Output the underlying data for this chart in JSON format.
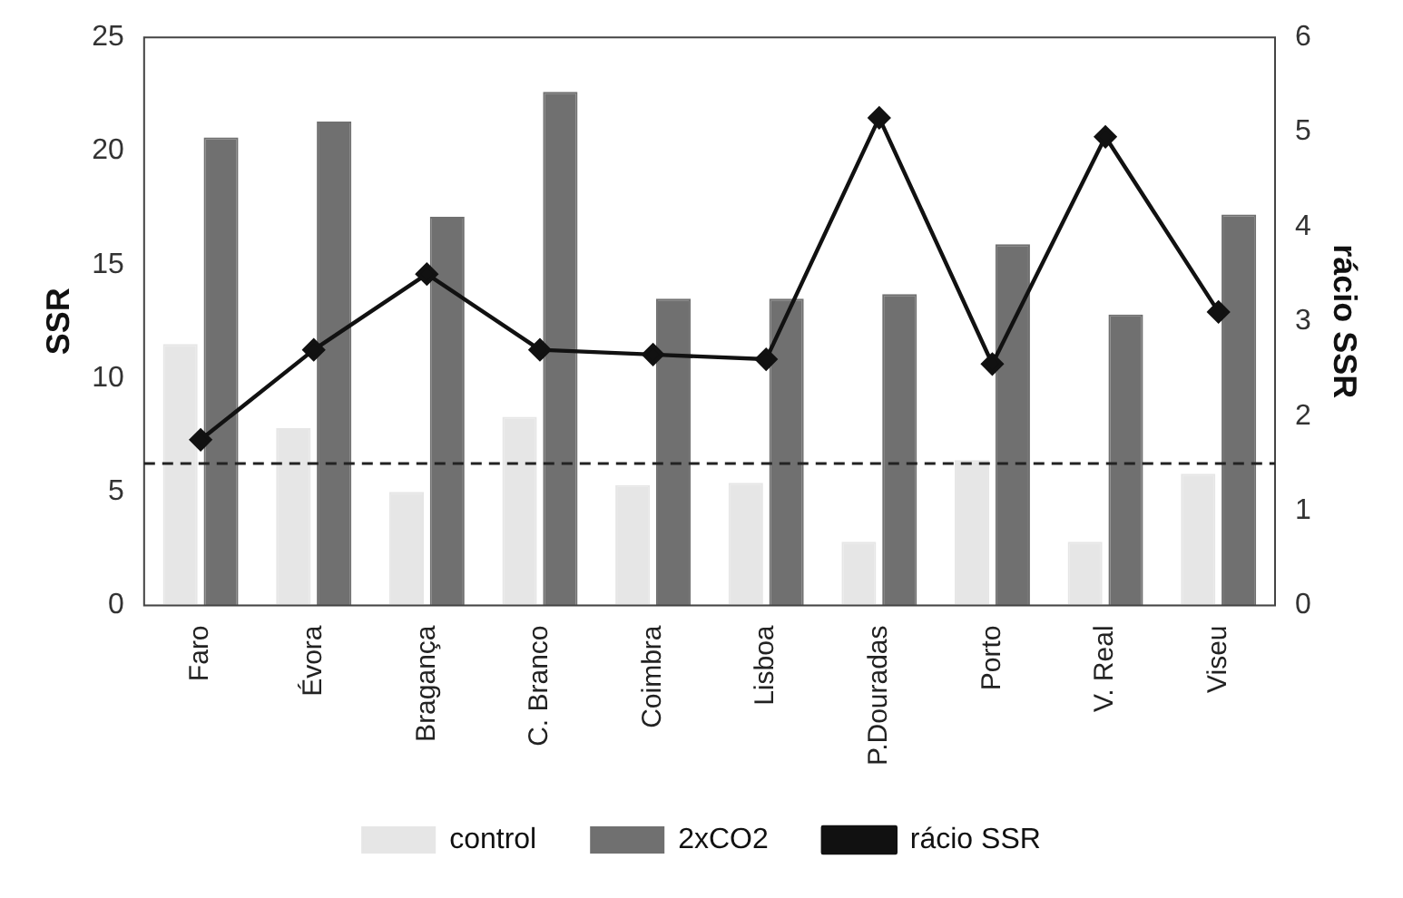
{
  "chart_data": {
    "type": "bar",
    "ylabel": "SSR",
    "y2label": "rácio SSR",
    "categories": [
      "Faro",
      "Évora",
      "Bragança",
      "C. Branco",
      "Coimbra",
      "Lisboa",
      "P.Douradas",
      "Porto",
      "V. Real",
      "Viseu"
    ],
    "series": [
      {
        "name": "control",
        "color": "#e6e6e6",
        "values": [
          11.5,
          7.8,
          5.0,
          8.3,
          5.3,
          5.4,
          2.8,
          6.4,
          2.8,
          5.8
        ]
      },
      {
        "name": "2xCO2",
        "color": "#707070",
        "values": [
          20.6,
          21.3,
          17.1,
          22.6,
          13.5,
          13.5,
          13.7,
          15.9,
          12.8,
          17.2
        ]
      },
      {
        "name": "rácio SSR",
        "type": "line",
        "axis": "y2",
        "color": "#111111",
        "values": [
          1.75,
          2.7,
          3.5,
          2.7,
          2.65,
          2.6,
          5.15,
          2.55,
          4.95,
          3.1
        ]
      }
    ],
    "ylim": [
      0,
      25
    ],
    "yticks": [
      0,
      5,
      10,
      15,
      20,
      25
    ],
    "y2lim": [
      0,
      6
    ],
    "y2ticks": [
      0,
      1,
      2,
      3,
      4,
      5,
      6
    ],
    "ref_lines": [
      {
        "axis": "y2",
        "value": 1.5,
        "color": "#222222",
        "line_style": "dashed"
      }
    ],
    "grid": false,
    "legend": "bottom",
    "marker": "diamond",
    "line_style": "solid"
  }
}
